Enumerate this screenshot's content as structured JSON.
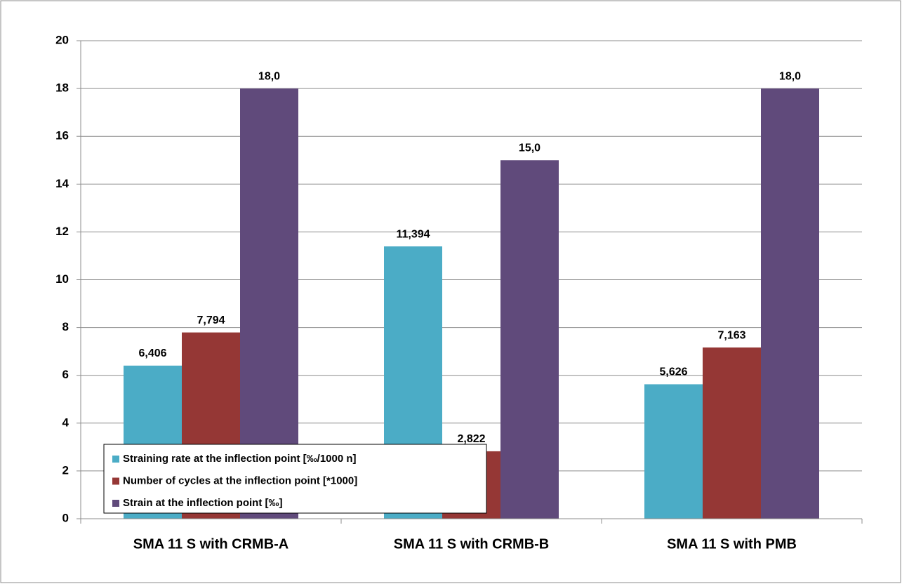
{
  "chart_data": {
    "type": "bar",
    "categories": [
      "SMA 11 S with CRMB-A",
      "SMA 11 S with CRMB-B",
      "SMA 11 S with PMB"
    ],
    "series": [
      {
        "name": "Straining rate at the inflection point [‰/1000 n]",
        "color": "#4bacc6",
        "values": [
          6.406,
          11.394,
          5.626
        ],
        "value_labels": [
          "6,406",
          "11,394",
          "5,626"
        ]
      },
      {
        "name": "Number of cycles at the inflection point [*1000]",
        "color": "#953735",
        "values": [
          7.794,
          2.822,
          7.163
        ],
        "value_labels": [
          "7,794",
          "2,822",
          "7,163"
        ]
      },
      {
        "name": "Strain at the inflection point [‰]",
        "color": "#604a7b",
        "values": [
          18,
          15,
          18
        ],
        "value_labels": [
          "18,0",
          "15,0",
          "18,0"
        ]
      }
    ],
    "ylim": [
      0,
      20
    ],
    "yticks": [
      0,
      2,
      4,
      6,
      8,
      10,
      12,
      14,
      16,
      18,
      20
    ],
    "grid": true,
    "legend": "lower left"
  }
}
